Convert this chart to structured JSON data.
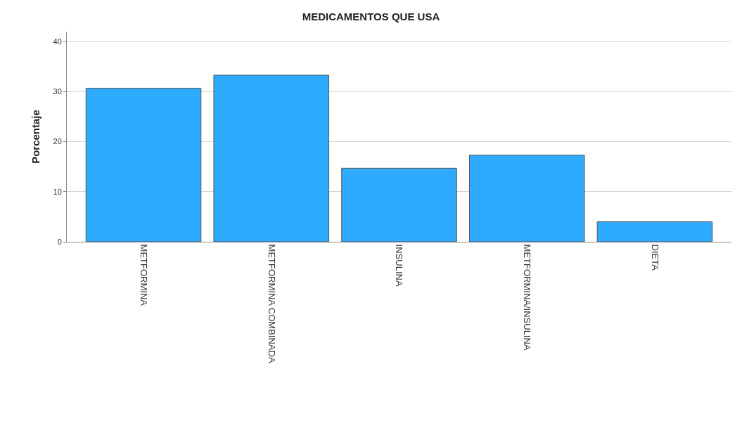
{
  "chart_data": {
    "type": "bar",
    "title": "MEDICAMENTOS QUE USA",
    "ylabel": "Porcentaje",
    "categories": [
      "METFORMINA",
      "METFORMINA COMBINADA",
      "INSULINA",
      "METFORMINA/INSULINA",
      "DIETA"
    ],
    "values": [
      30.7,
      33.3,
      14.7,
      17.3,
      4.0
    ],
    "color": "#2eaaff",
    "ylim": [
      0,
      42
    ],
    "yticks": [
      0,
      10,
      20,
      30,
      40
    ],
    "grid": "y"
  }
}
